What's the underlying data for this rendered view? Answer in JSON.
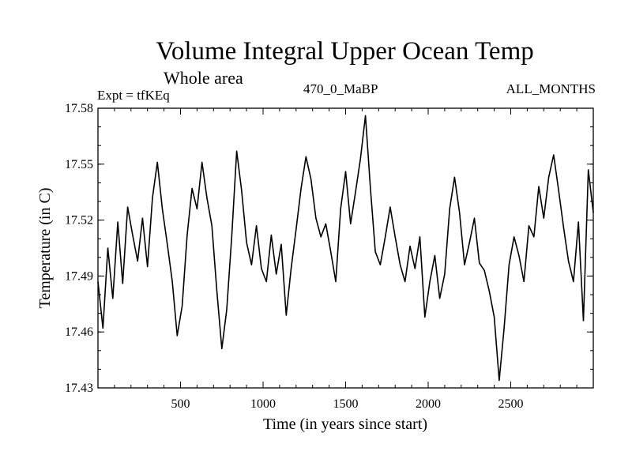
{
  "chart_data": {
    "type": "line",
    "title": "Volume Integral Upper Ocean Temp",
    "subtitle": "Whole area",
    "experiment": "Expt = tfKEq",
    "period": "470_0_MaBP",
    "months": "ALL_MONTHS",
    "xlabel": "Time (in years since start)",
    "ylabel": "Temperature (in C)",
    "xlim": [
      0,
      3000
    ],
    "ylim": [
      17.43,
      17.58
    ],
    "xticks": [
      500,
      1000,
      1500,
      2000,
      2500
    ],
    "xtick_labels": [
      "500",
      "1000",
      "1500",
      "2000",
      "2500"
    ],
    "yticks": [
      17.43,
      17.46,
      17.49,
      17.52,
      17.55,
      17.58
    ],
    "ytick_labels": [
      "17.43",
      "17.46",
      "17.49",
      "17.52",
      "17.55",
      "17.58"
    ],
    "grid": false,
    "legend": "none",
    "line_color": "#000000",
    "series": [
      {
        "x": [
          0,
          30,
          60,
          90,
          120,
          150,
          180,
          210,
          240,
          270,
          300,
          330,
          360,
          390,
          420,
          450,
          480,
          510,
          540,
          570,
          600,
          630,
          660,
          690,
          720,
          750,
          780,
          810,
          840,
          870,
          900,
          930,
          960,
          990,
          1020,
          1050,
          1080,
          1110,
          1140,
          1170,
          1200,
          1230,
          1260,
          1290,
          1320,
          1350,
          1380,
          1410,
          1440,
          1470,
          1500,
          1530,
          1560,
          1590,
          1620,
          1650,
          1680,
          1710,
          1740,
          1770,
          1800,
          1830,
          1860,
          1890,
          1920,
          1950,
          1980,
          2010,
          2040,
          2070,
          2100,
          2130,
          2160,
          2190,
          2220,
          2250,
          2280,
          2310,
          2340,
          2370,
          2400,
          2430,
          2460,
          2490,
          2520,
          2550,
          2580,
          2610,
          2640,
          2670,
          2700,
          2730,
          2760,
          2790,
          2820,
          2850,
          2880,
          2910,
          2940,
          2970,
          3000
        ],
        "y": [
          17.487,
          17.462,
          17.505,
          17.478,
          17.519,
          17.486,
          17.527,
          17.512,
          17.498,
          17.521,
          17.495,
          17.532,
          17.551,
          17.526,
          17.507,
          17.487,
          17.458,
          17.474,
          17.512,
          17.537,
          17.526,
          17.551,
          17.532,
          17.517,
          17.482,
          17.451,
          17.472,
          17.511,
          17.557,
          17.536,
          17.508,
          17.496,
          17.517,
          17.494,
          17.487,
          17.512,
          17.491,
          17.507,
          17.469,
          17.494,
          17.515,
          17.537,
          17.554,
          17.542,
          17.521,
          17.511,
          17.518,
          17.503,
          17.487,
          17.526,
          17.546,
          17.518,
          17.535,
          17.553,
          17.576,
          17.537,
          17.503,
          17.496,
          17.511,
          17.527,
          17.511,
          17.496,
          17.487,
          17.506,
          17.494,
          17.511,
          17.468,
          17.487,
          17.501,
          17.478,
          17.491,
          17.526,
          17.543,
          17.524,
          17.496,
          17.508,
          17.521,
          17.497,
          17.493,
          17.482,
          17.468,
          17.434,
          17.462,
          17.496,
          17.511,
          17.501,
          17.487,
          17.517,
          17.511,
          17.538,
          17.521,
          17.543,
          17.555,
          17.536,
          17.516,
          17.498,
          17.487,
          17.519,
          17.466,
          17.547,
          17.524
        ]
      }
    ]
  }
}
